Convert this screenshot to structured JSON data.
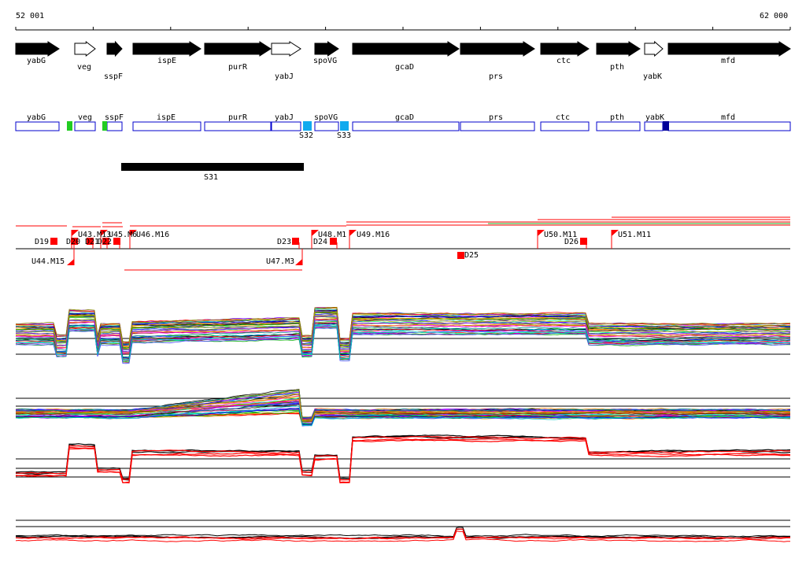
{
  "coords": {
    "start": "52 001",
    "end": "62 000"
  },
  "genes": [
    {
      "name": "yabG",
      "strand": "+",
      "filled": true
    },
    {
      "name": "veg",
      "strand": "+",
      "filled": false
    },
    {
      "name": "sspF",
      "strand": "+",
      "filled": true
    },
    {
      "name": "ispE",
      "strand": "+",
      "filled": true
    },
    {
      "name": "purR",
      "strand": "+",
      "filled": true
    },
    {
      "name": "yabJ",
      "strand": "+",
      "filled": false
    },
    {
      "name": "spoVG",
      "strand": "+",
      "filled": true
    },
    {
      "name": "gcaD",
      "strand": "+",
      "filled": true
    },
    {
      "name": "prs",
      "strand": "+",
      "filled": true
    },
    {
      "name": "ctc",
      "strand": "+",
      "filled": true
    },
    {
      "name": "pth",
      "strand": "+",
      "filled": true
    },
    {
      "name": "yabK",
      "strand": "+",
      "filled": false
    },
    {
      "name": "mfd",
      "strand": "+",
      "filled": true
    }
  ],
  "features": [
    {
      "name": "S32",
      "type": "segment"
    },
    {
      "name": "S33",
      "type": "segment"
    }
  ],
  "segment_bar": {
    "name": "S31"
  },
  "transcription_labels": [
    {
      "name": "D19"
    },
    {
      "name": "D20"
    },
    {
      "name": "U43.M13"
    },
    {
      "name": "D21"
    },
    {
      "name": "D22"
    },
    {
      "name": "U45.M6"
    },
    {
      "name": "U46.M16"
    },
    {
      "name": "D23"
    },
    {
      "name": "U48.M1"
    },
    {
      "name": "D24"
    },
    {
      "name": "U49.M16"
    },
    {
      "name": "U50.M11"
    },
    {
      "name": "D26"
    },
    {
      "name": "U51.M11"
    },
    {
      "name": "U44.M15"
    },
    {
      "name": "U47.M3"
    },
    {
      "name": "D25"
    }
  ],
  "colors": {
    "gene_fill": "#000000",
    "gene_box": "#0000cc",
    "marker_green": "#22cc22",
    "marker_blue": "#11aaee",
    "marker_navy": "#000099",
    "transcript_red": "#ff0000"
  }
}
